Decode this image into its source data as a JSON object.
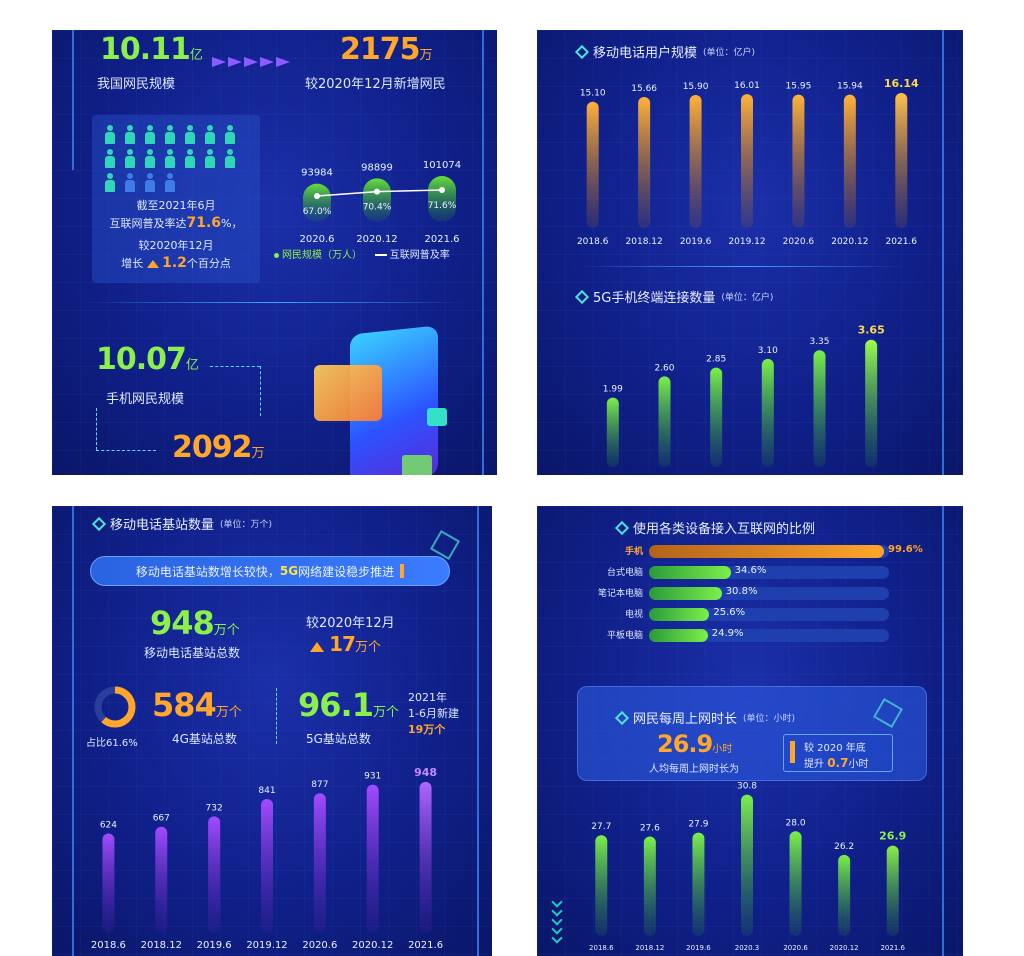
{
  "panel1": {
    "netizens_value": "10.11",
    "netizens_unit": "亿",
    "netizens_label": "我国网民规模",
    "increase_value": "2175",
    "increase_unit": "万",
    "increase_label": "较2020年12月新增网民",
    "info_line1": "截至2021年6月",
    "info_line2a": "互联网普及率达",
    "info_line2b": "71.6",
    "info_line2c": "%，",
    "info_line3": "较2020年12月",
    "info_line4a": "增长",
    "info_line4b": "1.2",
    "info_line4c": "个百分点",
    "legend_scale": "网民规模（万人）",
    "legend_rate": "互联网普及率",
    "mobile_value": "10.07",
    "mobile_unit": "亿",
    "mobile_label": "手机网民规模",
    "mobile_increase_value": "2092",
    "mobile_increase_unit": "万"
  },
  "panel2": {
    "mobile_users_title": "移动电话用户规模",
    "mobile_users_unit": "(单位：亿户)",
    "fiveg_title": "5G手机终端连接数量",
    "fiveg_unit": "(单位：亿户)"
  },
  "panel3": {
    "title": "移动电话基站数量",
    "unit": "(单位：万个)",
    "banner_a": "移动电话基站数增长较快，",
    "banner_b": "5G",
    "banner_c": "网络建设稳步推进",
    "total_value": "948",
    "total_unit": "万个",
    "total_label": "移动电话基站总数",
    "compare_label": "较2020年12月",
    "compare_value": "17",
    "compare_unit": "万个",
    "ratio_label": "占比61.6%",
    "g4_value": "584",
    "g4_unit": "万个",
    "g4_label": "4G基站总数",
    "g5_value": "96.1",
    "g5_unit": "万个",
    "g5_label": "5G基站总数",
    "new_line1": "2021年",
    "new_line2": "1-6月新建",
    "new_line3": "19万个"
  },
  "panel4": {
    "devices_title": "使用各类设备接入互联网的比例",
    "weekly_title": "网民每周上网时长",
    "weekly_unit": "(单位：小时)",
    "avg_value": "26.9",
    "avg_unit": "小时",
    "avg_label": "人均每周上网时长为",
    "compare_line1": "较 2020 年底",
    "compare_line2a": "提升",
    "compare_line2b": "0.7",
    "compare_line2c": "小时"
  },
  "colors": {
    "green": "#8cf04a",
    "orange": "#ffa62b",
    "purple": "#a24cff",
    "panel_bg": "#10208a"
  },
  "chart_data": [
    {
      "type": "bar",
      "chart": "netizen_scale",
      "categories": [
        "2020.6",
        "2020.12",
        "2021.6"
      ],
      "series": [
        {
          "name": "网民规模（万人）",
          "values": [
            93984,
            98899,
            101074
          ]
        },
        {
          "name": "互联网普及率",
          "type": "line",
          "values": [
            67.0,
            70.4,
            71.6
          ]
        }
      ],
      "value_labels": [
        "93984",
        "98899",
        "101074"
      ],
      "rate_labels": [
        "67.0%",
        "70.4%",
        "71.6%"
      ]
    },
    {
      "type": "bar",
      "chart": "mobile_users",
      "categories": [
        "2018.6",
        "2018.12",
        "2019.6",
        "2019.12",
        "2020.6",
        "2020.12",
        "2021.6"
      ],
      "values": [
        15.1,
        15.66,
        15.9,
        16.01,
        15.95,
        15.94,
        16.14
      ],
      "value_labels": [
        "15.10",
        "15.66",
        "15.90",
        "16.01",
        "15.95",
        "15.94",
        "16.14"
      ],
      "ylim": [
        0,
        16.5
      ]
    },
    {
      "type": "bar",
      "chart": "fiveg_terminals",
      "values": [
        1.99,
        2.6,
        2.85,
        3.1,
        3.35,
        3.65
      ],
      "value_labels": [
        "1.99",
        "2.60",
        "2.85",
        "3.10",
        "3.35",
        "3.65"
      ],
      "ylim": [
        0,
        3.7
      ]
    },
    {
      "type": "bar",
      "chart": "base_stations",
      "categories": [
        "2018.6",
        "2018.12",
        "2019.6",
        "2019.12",
        "2020.6",
        "2020.12",
        "2021.6"
      ],
      "values": [
        624,
        667,
        732,
        841,
        877,
        931,
        948
      ],
      "value_labels": [
        "624",
        "667",
        "732",
        "841",
        "877",
        "931",
        "948"
      ],
      "ylim": [
        0,
        960
      ]
    },
    {
      "type": "bar",
      "chart": "device_share",
      "orientation": "horizontal",
      "categories": [
        "手机",
        "台式电脑",
        "笔记本电脑",
        "电视",
        "平板电脑"
      ],
      "values": [
        99.6,
        34.6,
        30.8,
        25.6,
        24.9
      ],
      "value_labels": [
        "99.6%",
        "34.6%",
        "30.8%",
        "25.6%",
        "24.9%"
      ],
      "xlim": [
        0,
        100
      ]
    },
    {
      "type": "bar",
      "chart": "weekly_hours",
      "categories": [
        "2018.6",
        "2018.12",
        "2019.6",
        "2020.3",
        "2020.6",
        "2020.12",
        "2021.6"
      ],
      "values": [
        27.7,
        27.6,
        27.9,
        30.8,
        28.0,
        26.2,
        26.9
      ],
      "value_labels": [
        "27.7",
        "27.6",
        "27.9",
        "30.8",
        "28.0",
        "26.2",
        "26.9"
      ],
      "ylim": [
        0,
        31
      ]
    }
  ]
}
